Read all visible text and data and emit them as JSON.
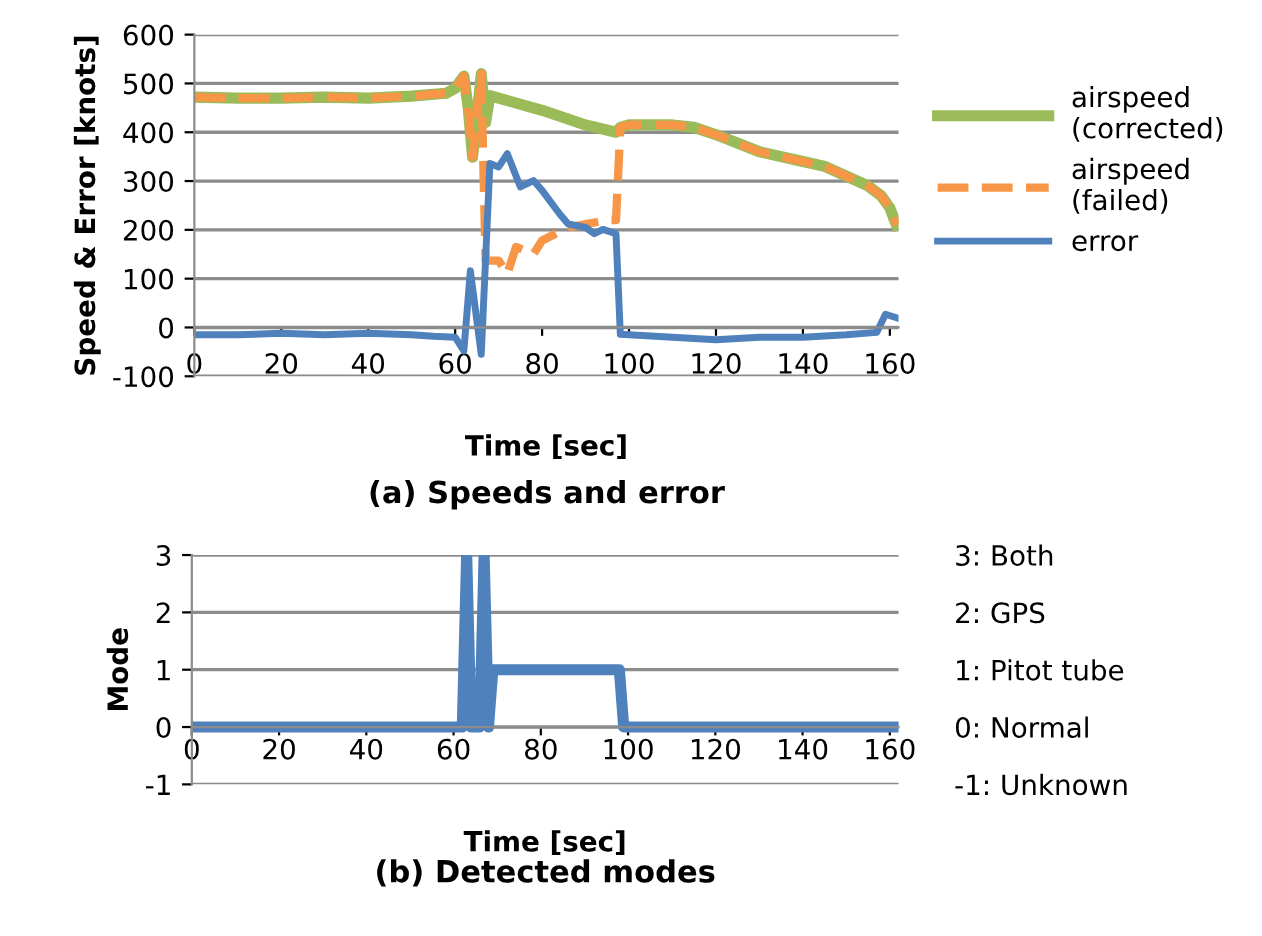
{
  "chart_data": [
    {
      "type": "line",
      "title": "(a) Speeds and error",
      "xlabel": "Time [sec]",
      "ylabel": "Speed & Error [knots]",
      "xlim": [
        0,
        162
      ],
      "xticks": [
        0,
        20,
        40,
        60,
        80,
        100,
        120,
        140,
        160
      ],
      "ylim": [
        -100,
        600
      ],
      "yticks": [
        -100,
        0,
        100,
        200,
        300,
        400,
        500,
        600
      ],
      "grid": "y",
      "legend": "right",
      "series": [
        {
          "name": "airspeed (corrected)",
          "color": "#9bbb59",
          "line_style": "solid",
          "x": [
            0,
            10,
            20,
            30,
            40,
            50,
            55,
            58,
            60,
            62,
            63,
            64,
            65,
            66,
            67,
            68,
            70,
            80,
            90,
            97,
            98,
            100,
            110,
            115,
            120,
            130,
            140,
            145,
            150,
            155,
            158,
            160,
            161.5
          ],
          "values": [
            472,
            470,
            470,
            472,
            470,
            474,
            478,
            480,
            490,
            515,
            450,
            349,
            430,
            520,
            420,
            475,
            470,
            445,
            415,
            400,
            410,
            415,
            415,
            410,
            395,
            360,
            340,
            330,
            310,
            290,
            270,
            245,
            210
          ]
        },
        {
          "name": "airspeed (failed)",
          "color": "#f79646",
          "line_style": "dashed",
          "x": [
            0,
            10,
            20,
            30,
            40,
            50,
            55,
            58,
            60,
            62,
            63,
            64,
            65,
            66,
            67,
            70,
            72,
            74,
            78,
            80,
            86,
            95,
            97,
            98,
            100,
            110,
            115,
            120,
            130,
            140,
            145,
            150,
            155,
            158,
            160,
            161.5
          ],
          "values": [
            472,
            470,
            470,
            472,
            470,
            474,
            478,
            480,
            490,
            515,
            450,
            349,
            430,
            520,
            137,
            137,
            110,
            165,
            150,
            178,
            205,
            220,
            220,
            410,
            415,
            415,
            410,
            395,
            360,
            340,
            330,
            310,
            290,
            270,
            245,
            210
          ]
        },
        {
          "name": "error",
          "color": "#4f81bd",
          "line_style": "solid",
          "x": [
            0,
            10,
            20,
            30,
            40,
            50,
            55,
            60,
            62,
            63.5,
            66,
            68,
            70,
            72,
            75,
            78,
            80,
            84,
            86,
            90,
            92,
            94,
            97,
            98,
            100,
            110,
            120,
            130,
            140,
            150,
            157,
            159,
            161.5
          ],
          "values": [
            -15,
            -15,
            -12,
            -15,
            -12,
            -15,
            -18,
            -20,
            -48,
            116,
            -55,
            336,
            329,
            356,
            288,
            301,
            281,
            233,
            212,
            205,
            192,
            201,
            192,
            -14,
            -15,
            -20,
            -25,
            -20,
            -20,
            -15,
            -10,
            27,
            20
          ]
        }
      ]
    },
    {
      "type": "line",
      "title": "(b) Detected modes",
      "xlabel": "Time [sec]",
      "ylabel": "Mode",
      "xlim": [
        0,
        162
      ],
      "xticks": [
        0,
        20,
        40,
        60,
        80,
        100,
        120,
        140,
        160
      ],
      "ylim": [
        -1,
        3
      ],
      "yticks": [
        -1,
        0,
        1,
        2,
        3
      ],
      "y2lim": [
        -1,
        3
      ],
      "y2ticks": [
        {
          "value": 3,
          "label": "3: Both"
        },
        {
          "value": 2,
          "label": "2: GPS"
        },
        {
          "value": 1,
          "label": "1: Pitot tube"
        },
        {
          "value": 0,
          "label": "0: Normal"
        },
        {
          "value": -1,
          "label": "-1: Unknown"
        }
      ],
      "grid": "y",
      "legend": false,
      "series": [
        {
          "color": "#4f81bd",
          "line_style": "solid",
          "x": [
            0,
            62,
            63,
            64,
            66,
            67,
            68,
            69,
            98,
            99,
            162
          ],
          "values": [
            0,
            0,
            3,
            0,
            0,
            3,
            0,
            1,
            1,
            0,
            0
          ]
        }
      ]
    }
  ]
}
